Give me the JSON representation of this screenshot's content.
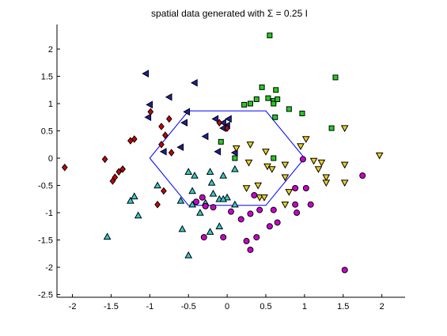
{
  "chart_data": {
    "type": "scatter",
    "title": "spatial data generated with Σ = 0.25 I",
    "xlabel": "",
    "ylabel": "",
    "xlim": [
      -2.2,
      2.3
    ],
    "ylim": [
      -2.55,
      2.45
    ],
    "xticks": [
      -2,
      -1.5,
      -1,
      -0.5,
      0,
      0.5,
      1,
      1.5,
      2
    ],
    "yticks": [
      -2.5,
      -2,
      -1.5,
      -1,
      -0.5,
      0,
      0.5,
      1,
      1.5,
      2
    ],
    "grid": false,
    "hexagon": {
      "color": "#0000ff",
      "vertices": [
        [
          -1.0,
          0.0
        ],
        [
          -0.5,
          -0.866
        ],
        [
          0.5,
          -0.866
        ],
        [
          1.0,
          0.0
        ],
        [
          0.5,
          0.866
        ],
        [
          -0.5,
          0.866
        ]
      ]
    },
    "series": [
      {
        "marker": "square",
        "color": "#22cc22",
        "points": [
          [
            0.55,
            2.25
          ],
          [
            1.4,
            1.48
          ],
          [
            0.45,
            1.3
          ],
          [
            0.63,
            1.25
          ],
          [
            0.53,
            1.1
          ],
          [
            0.6,
            1.05
          ],
          [
            0.6,
            1.0
          ],
          [
            0.65,
            1.08
          ],
          [
            0.8,
            0.9
          ],
          [
            0.38,
            1.08
          ],
          [
            0.22,
            0.98
          ],
          [
            0.3,
            1.0
          ],
          [
            0.97,
            0.82
          ],
          [
            0.62,
            0.75
          ],
          [
            1.35,
            0.55
          ],
          [
            -0.08,
            0.3
          ],
          [
            0.1,
            0.0
          ],
          [
            0.6,
            0.0
          ]
        ]
      },
      {
        "marker": "triangle-left",
        "color": "#1f1fa0",
        "points": [
          [
            -1.05,
            1.55
          ],
          [
            -0.42,
            1.38
          ],
          [
            -0.75,
            1.12
          ],
          [
            -1.0,
            0.98
          ],
          [
            -0.52,
            0.85
          ],
          [
            -1.02,
            0.75
          ],
          [
            -0.55,
            0.65
          ],
          [
            -0.15,
            0.72
          ],
          [
            0.02,
            0.72
          ],
          [
            -0.05,
            0.65
          ],
          [
            0.0,
            0.6
          ],
          [
            -0.05,
            0.55
          ],
          [
            -0.28,
            0.4
          ],
          [
            -0.12,
            0.12
          ],
          [
            -0.6,
            0.2
          ],
          [
            -0.82,
            0.12
          ],
          [
            0.1,
            0.1
          ]
        ]
      },
      {
        "marker": "diamond",
        "color": "#cc0000",
        "points": [
          [
            -2.1,
            -0.17
          ],
          [
            -1.58,
            -0.02
          ],
          [
            -0.99,
            0.85
          ],
          [
            -0.75,
            0.72
          ],
          [
            -0.85,
            0.58
          ],
          [
            -0.8,
            0.42
          ],
          [
            -1.2,
            0.35
          ],
          [
            -1.25,
            0.32
          ],
          [
            -0.85,
            0.25
          ],
          [
            -1.35,
            -0.2
          ],
          [
            -1.4,
            -0.25
          ],
          [
            -1.45,
            -0.35
          ],
          [
            -1.48,
            -0.42
          ],
          [
            -0.72,
            0.1
          ],
          [
            -0.9,
            -0.85
          ],
          [
            -0.82,
            -0.6
          ],
          [
            0.0,
            0.55
          ],
          [
            -0.1,
            0.65
          ]
        ]
      },
      {
        "marker": "triangle-up",
        "color": "#33cccc",
        "points": [
          [
            -1.55,
            -1.44
          ],
          [
            -1.15,
            -1.05
          ],
          [
            -1.2,
            -0.7
          ],
          [
            -1.25,
            -0.78
          ],
          [
            -0.9,
            -0.5
          ],
          [
            -0.5,
            -0.25
          ],
          [
            -0.42,
            -0.32
          ],
          [
            -0.22,
            -0.25
          ],
          [
            -0.2,
            -0.45
          ],
          [
            -0.45,
            -0.6
          ],
          [
            -0.6,
            -0.78
          ],
          [
            -0.45,
            -0.85
          ],
          [
            -0.18,
            -0.65
          ],
          [
            -0.1,
            -0.75
          ],
          [
            0.0,
            -0.72
          ],
          [
            -0.05,
            -0.75
          ],
          [
            -0.28,
            -0.82
          ],
          [
            -0.35,
            -1.0
          ],
          [
            -0.5,
            -1.78
          ],
          [
            -0.58,
            -1.3
          ],
          [
            -0.22,
            -1.35
          ],
          [
            -0.1,
            -1.25
          ],
          [
            0.1,
            -0.85
          ],
          [
            -0.05,
            -0.32
          ],
          [
            0.1,
            -0.2
          ]
        ]
      },
      {
        "marker": "triangle-down",
        "color": "#e8d020",
        "points": [
          [
            1.97,
            0.05
          ],
          [
            1.52,
            0.55
          ],
          [
            1.02,
            0.35
          ],
          [
            0.95,
            0.22
          ],
          [
            0.3,
            0.25
          ],
          [
            0.5,
            0.12
          ],
          [
            0.12,
            0.18
          ],
          [
            0.28,
            -0.08
          ],
          [
            0.52,
            -0.15
          ],
          [
            0.58,
            -0.2
          ],
          [
            0.75,
            -0.12
          ],
          [
            1.12,
            -0.05
          ],
          [
            1.22,
            -0.08
          ],
          [
            1.28,
            -0.35
          ],
          [
            1.28,
            -0.45
          ],
          [
            1.52,
            -0.12
          ],
          [
            1.52,
            -0.45
          ],
          [
            1.18,
            -0.2
          ],
          [
            0.25,
            -0.55
          ],
          [
            0.4,
            -0.5
          ],
          [
            0.75,
            -0.35
          ],
          [
            0.42,
            -0.72
          ],
          [
            0.48,
            -0.72
          ],
          [
            0.75,
            -0.85
          ],
          [
            0.8,
            -0.62
          ]
        ]
      },
      {
        "marker": "circle",
        "color": "#cc00cc",
        "points": [
          [
            0.98,
            -0.02
          ],
          [
            1.75,
            -0.32
          ],
          [
            0.88,
            -0.55
          ],
          [
            1.02,
            -0.55
          ],
          [
            0.88,
            -0.85
          ],
          [
            1.08,
            -0.85
          ],
          [
            0.9,
            -1.0
          ],
          [
            0.35,
            -0.68
          ],
          [
            0.42,
            -0.95
          ],
          [
            0.6,
            -0.95
          ],
          [
            0.3,
            -1.02
          ],
          [
            0.55,
            -1.25
          ],
          [
            0.65,
            -1.18
          ],
          [
            0.18,
            -1.12
          ],
          [
            0.05,
            -0.98
          ],
          [
            -0.18,
            -0.9
          ],
          [
            -0.28,
            -0.88
          ],
          [
            -0.32,
            -0.72
          ],
          [
            -0.4,
            -0.8
          ],
          [
            -0.3,
            -1.45
          ],
          [
            -0.05,
            -1.45
          ],
          [
            0.25,
            -1.52
          ],
          [
            0.3,
            -1.68
          ],
          [
            0.38,
            -1.45
          ],
          [
            1.52,
            -2.05
          ]
        ]
      }
    ]
  }
}
